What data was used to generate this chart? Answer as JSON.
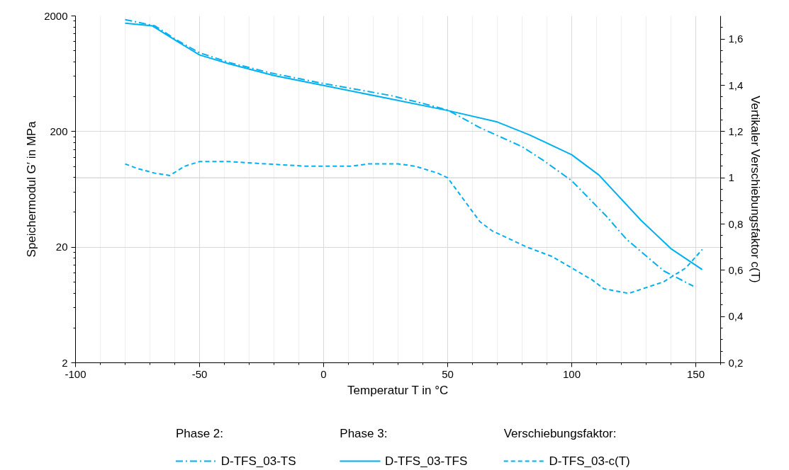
{
  "chart_data": {
    "type": "line",
    "xlabel": "Temperatur T in °C",
    "ylabel": "Speichermodul G′ in MPa",
    "y2label": "Vertikaler Verschiebungsfaktor c(T)",
    "xlim": [
      -100,
      160
    ],
    "xticks": [
      -100,
      -50,
      0,
      50,
      100,
      150
    ],
    "ylim": [
      2,
      2000
    ],
    "yticks": [
      2,
      20,
      200,
      2000
    ],
    "log": "y",
    "y2lim": [
      0.2,
      1.7
    ],
    "y2ticks": [
      {
        "value": 0.2,
        "label": "0,2"
      },
      {
        "value": 0.4,
        "label": "0,4"
      },
      {
        "value": 0.6,
        "label": "0,6"
      },
      {
        "value": 0.8,
        "label": "0,8"
      },
      {
        "value": 1,
        "label": "1"
      },
      {
        "value": 1.2,
        "label": "1,2"
      },
      {
        "value": 1.4,
        "label": "1,4"
      },
      {
        "value": 1.6,
        "label": "1,6"
      }
    ],
    "grid": true,
    "legend": "bottom",
    "annotations": [
      "Phase 2:",
      "Phase 3:",
      "Verschiebungsfaktor:"
    ],
    "ref_lines": [
      {
        "axis": "y2",
        "value": 1,
        "label": null,
        "color": "#d9d9d9"
      }
    ],
    "series": [
      {
        "name": "D-TFS_03-TS",
        "color": "#00b0f0",
        "line_style": "dashdot",
        "x": [
          -80,
          -68,
          -59,
          -50,
          -38,
          -21,
          0,
          27,
          40,
          50,
          63,
          80,
          89,
          100,
          114,
          122,
          137,
          149
        ],
        "values": [
          1860,
          1640,
          1230,
          960,
          790,
          640,
          520,
          410,
          350,
          307,
          216,
          148,
          111,
          75,
          37,
          23.5,
          12.5,
          9.2
        ]
      },
      {
        "name": "D-TFS_03-TFS",
        "color": "#00b0f0",
        "line_style": "solid",
        "x": [
          -80,
          -69,
          -58,
          -50,
          -38,
          -20,
          0,
          27,
          50,
          70,
          83,
          100,
          111,
          128,
          140,
          152.6
        ],
        "values": [
          1730,
          1640,
          1170,
          920,
          770,
          610,
          500,
          383,
          304,
          242,
          187,
          126,
          84,
          34,
          19.4,
          12.8
        ]
      },
      {
        "name": "D-TFS_03-c(T)",
        "color": "#00b0f0",
        "line_style": "dashed",
        "axis": "y2",
        "x": [
          -80,
          -75,
          -68,
          -62,
          -56,
          -50,
          -38,
          -23,
          -7,
          0,
          11,
          18,
          30,
          37,
          46,
          50,
          63,
          68,
          82,
          92,
          108,
          113,
          123,
          137,
          146,
          152.6
        ],
        "values": [
          1.06,
          1.04,
          1.02,
          1.01,
          1.05,
          1.07,
          1.07,
          1.06,
          1.05,
          1.05,
          1.05,
          1.06,
          1.06,
          1.05,
          1.02,
          1.0,
          0.81,
          0.77,
          0.7,
          0.66,
          0.56,
          0.52,
          0.5,
          0.55,
          0.61,
          0.69
        ]
      }
    ]
  }
}
